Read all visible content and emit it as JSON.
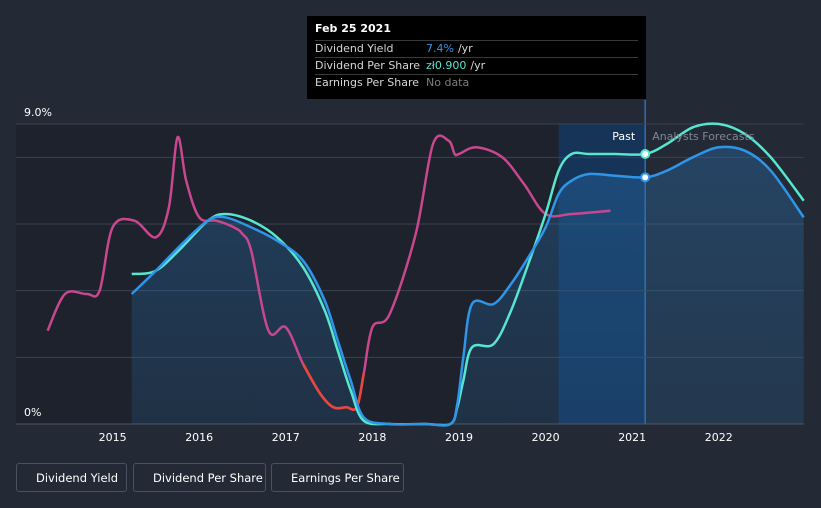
{
  "tooltip": {
    "date": "Feb 25 2021",
    "rows": [
      {
        "label": "Dividend Yield",
        "value": "7.4%",
        "unit": "/yr"
      },
      {
        "label": "Dividend Per Share",
        "value": "zł0.900",
        "unit": "/yr"
      },
      {
        "label": "Earnings Per Share",
        "value": "No data",
        "unit": ""
      }
    ]
  },
  "legend": [
    {
      "label": "Dividend Yield",
      "color": "#2f95e8"
    },
    {
      "label": "Dividend Per Share",
      "color": "#57e6cf"
    },
    {
      "label": "Earnings Per Share",
      "color": "#c8478f"
    }
  ],
  "chart_data": {
    "type": "line",
    "title": "",
    "xlabel": "",
    "ylabel": "",
    "x_ticks": [
      "2015",
      "2016",
      "2017",
      "2018",
      "2019",
      "2020",
      "2021",
      "2022"
    ],
    "y_tick_labels": [
      "9.0%",
      "0%"
    ],
    "ylim": [
      0,
      9.0
    ],
    "xlim": [
      2014.25,
      2022.98
    ],
    "past_label": "Past",
    "forecast_label": "Analysts Forecasts",
    "forecast_start": 2021.15,
    "highlight_start": 2020.15,
    "colors": {
      "dividend_yield": "#2f95e8",
      "dividend_per_share": "#57e6cf",
      "earnings_per_share": "#c8478f",
      "earnings_negative": "#e8473c",
      "background": "#232a36"
    },
    "series": [
      {
        "name": "Dividend Yield",
        "key": "dividend_yield",
        "x": [
          2015.22,
          2015.5,
          2015.8,
          2016.1,
          2016.3,
          2016.6,
          2016.9,
          2017.2,
          2017.45,
          2017.6,
          2017.75,
          2017.9,
          2018.2,
          2018.6,
          2018.9,
          2018.98,
          2019.05,
          2019.15,
          2019.4,
          2019.6,
          2019.8,
          2020.0,
          2020.15,
          2020.3,
          2020.5,
          2020.8,
          2021.15,
          2021.4,
          2021.7,
          2022.0,
          2022.3,
          2022.6,
          2022.98
        ],
        "y": [
          3.9,
          4.6,
          5.4,
          6.1,
          6.2,
          5.9,
          5.5,
          4.9,
          3.7,
          2.5,
          1.3,
          0.2,
          0.0,
          0.0,
          0.0,
          0.6,
          2.0,
          3.6,
          3.6,
          4.2,
          5.0,
          5.9,
          6.9,
          7.3,
          7.5,
          7.45,
          7.4,
          7.6,
          8.0,
          8.3,
          8.2,
          7.6,
          6.2
        ]
      },
      {
        "name": "Dividend Per Share",
        "key": "dividend_per_share",
        "x": [
          2015.22,
          2015.5,
          2015.8,
          2016.1,
          2016.3,
          2016.6,
          2016.9,
          2017.2,
          2017.45,
          2017.6,
          2017.75,
          2017.9,
          2018.2,
          2018.6,
          2018.9,
          2018.98,
          2019.05,
          2019.15,
          2019.4,
          2019.6,
          2019.8,
          2020.0,
          2020.15,
          2020.3,
          2020.5,
          2020.8,
          2021.15,
          2021.4,
          2021.7,
          2022.0,
          2022.3,
          2022.6,
          2022.98
        ],
        "y": [
          4.5,
          4.6,
          5.3,
          6.1,
          6.3,
          6.1,
          5.6,
          4.7,
          3.4,
          2.2,
          1.0,
          0.1,
          0.0,
          0.0,
          0.0,
          0.5,
          1.3,
          2.3,
          2.4,
          3.4,
          4.8,
          6.3,
          7.6,
          8.1,
          8.1,
          8.1,
          8.1,
          8.4,
          8.9,
          9.0,
          8.7,
          8.0,
          6.7
        ]
      },
      {
        "name": "Earnings Per Share",
        "key": "earnings_per_share",
        "x": [
          2014.25,
          2014.45,
          2014.7,
          2014.85,
          2015.0,
          2015.25,
          2015.5,
          2015.65,
          2015.75,
          2015.85,
          2016.0,
          2016.2,
          2016.4,
          2016.5,
          2016.6,
          2016.8,
          2017.0,
          2017.2,
          2017.4,
          2017.55,
          2017.7,
          2017.82,
          2017.9,
          2018.0,
          2018.2,
          2018.5,
          2018.7,
          2018.88,
          2018.95,
          2019.0,
          2019.2,
          2019.5,
          2019.75,
          2020.0,
          2020.3,
          2020.75
        ],
        "y": [
          2.8,
          3.9,
          3.9,
          4.0,
          5.9,
          6.1,
          5.6,
          6.5,
          8.6,
          7.3,
          6.2,
          6.1,
          5.9,
          5.7,
          5.2,
          2.8,
          2.9,
          1.8,
          0.9,
          0.5,
          0.5,
          0.5,
          1.5,
          2.9,
          3.3,
          5.7,
          8.4,
          8.5,
          8.1,
          8.1,
          8.3,
          8.0,
          7.2,
          6.3,
          6.3,
          6.4
        ]
      }
    ],
    "markers": [
      {
        "x": 2021.15,
        "y": 8.1,
        "series": "Dividend Per Share"
      },
      {
        "x": 2021.15,
        "y": 7.4,
        "series": "Dividend Yield"
      }
    ]
  }
}
